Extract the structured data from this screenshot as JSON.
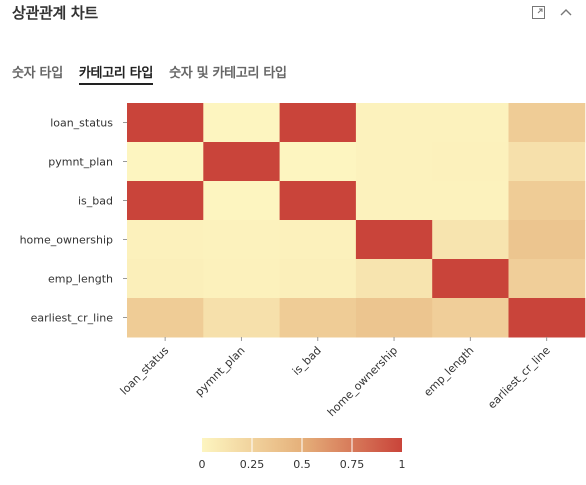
{
  "header": {
    "title": "상관관계 차트",
    "icons": [
      "expand-icon",
      "chevron-up-icon"
    ]
  },
  "tabs": [
    {
      "label": "숫자 타입",
      "active": false
    },
    {
      "label": "카테고리 타입",
      "active": true
    },
    {
      "label": "숫자 및 카테고리 타입",
      "active": false
    }
  ],
  "colors": {
    "low": "#fdf5c0",
    "mid": "#e5b07a",
    "high": "#c9443a",
    "axis": "#999999",
    "text": "#333333"
  },
  "chart_data": {
    "type": "heatmap",
    "rows": [
      "loan_status",
      "pymnt_plan",
      "is_bad",
      "home_ownership",
      "emp_length",
      "earliest_cr_line"
    ],
    "columns": [
      "loan_status",
      "pymnt_plan",
      "is_bad",
      "home_ownership",
      "emp_length",
      "earliest_cr_line"
    ],
    "values": [
      [
        1.0,
        0.0,
        1.0,
        0.02,
        0.02,
        0.3
      ],
      [
        0.0,
        1.0,
        0.0,
        0.02,
        0.03,
        0.15
      ],
      [
        1.0,
        0.0,
        1.0,
        0.02,
        0.02,
        0.3
      ],
      [
        0.03,
        0.02,
        0.03,
        1.0,
        0.12,
        0.35
      ],
      [
        0.04,
        0.03,
        0.04,
        0.12,
        1.0,
        0.28
      ],
      [
        0.3,
        0.15,
        0.3,
        0.35,
        0.28,
        1.0
      ]
    ],
    "colorbar": {
      "ticks": [
        0,
        0.25,
        0.5,
        0.75,
        1
      ],
      "tick_labels": [
        "0",
        "0.25",
        "0.5",
        "0.75",
        "1"
      ],
      "range": [
        0,
        1
      ]
    }
  }
}
